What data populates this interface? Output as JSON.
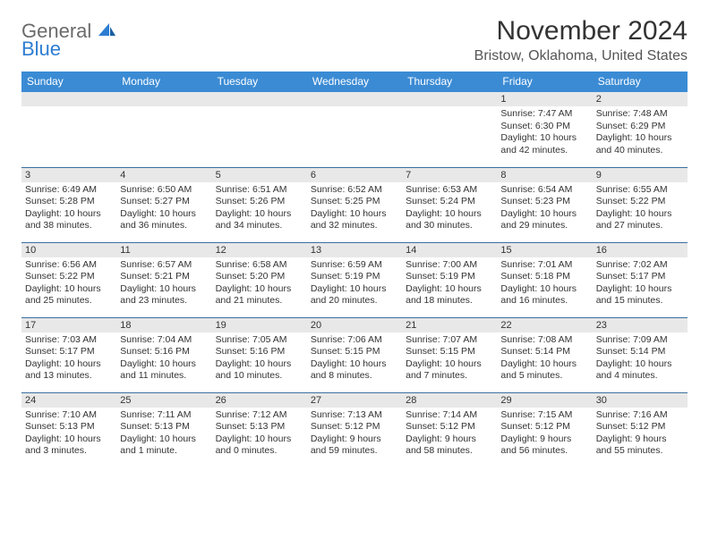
{
  "logo": {
    "line1": "General",
    "line2": "Blue",
    "color_gray": "#6b6b6b",
    "color_blue": "#2d7dd2"
  },
  "title": "November 2024",
  "location": "Bristow, Oklahoma, United States",
  "colors": {
    "header_bg": "#3b8bd4",
    "header_text": "#ffffff",
    "row_divider": "#3b6fa0",
    "daynum_bg": "#e8e8e8",
    "spacer_bg": "#f0f0f0",
    "body_text": "#333333",
    "page_bg": "#ffffff"
  },
  "day_headers": [
    "Sunday",
    "Monday",
    "Tuesday",
    "Wednesday",
    "Thursday",
    "Friday",
    "Saturday"
  ],
  "weeks": [
    [
      null,
      null,
      null,
      null,
      null,
      {
        "n": "1",
        "sr": "Sunrise: 7:47 AM",
        "ss": "Sunset: 6:30 PM",
        "dl": "Daylight: 10 hours and 42 minutes."
      },
      {
        "n": "2",
        "sr": "Sunrise: 7:48 AM",
        "ss": "Sunset: 6:29 PM",
        "dl": "Daylight: 10 hours and 40 minutes."
      }
    ],
    [
      {
        "n": "3",
        "sr": "Sunrise: 6:49 AM",
        "ss": "Sunset: 5:28 PM",
        "dl": "Daylight: 10 hours and 38 minutes."
      },
      {
        "n": "4",
        "sr": "Sunrise: 6:50 AM",
        "ss": "Sunset: 5:27 PM",
        "dl": "Daylight: 10 hours and 36 minutes."
      },
      {
        "n": "5",
        "sr": "Sunrise: 6:51 AM",
        "ss": "Sunset: 5:26 PM",
        "dl": "Daylight: 10 hours and 34 minutes."
      },
      {
        "n": "6",
        "sr": "Sunrise: 6:52 AM",
        "ss": "Sunset: 5:25 PM",
        "dl": "Daylight: 10 hours and 32 minutes."
      },
      {
        "n": "7",
        "sr": "Sunrise: 6:53 AM",
        "ss": "Sunset: 5:24 PM",
        "dl": "Daylight: 10 hours and 30 minutes."
      },
      {
        "n": "8",
        "sr": "Sunrise: 6:54 AM",
        "ss": "Sunset: 5:23 PM",
        "dl": "Daylight: 10 hours and 29 minutes."
      },
      {
        "n": "9",
        "sr": "Sunrise: 6:55 AM",
        "ss": "Sunset: 5:22 PM",
        "dl": "Daylight: 10 hours and 27 minutes."
      }
    ],
    [
      {
        "n": "10",
        "sr": "Sunrise: 6:56 AM",
        "ss": "Sunset: 5:22 PM",
        "dl": "Daylight: 10 hours and 25 minutes."
      },
      {
        "n": "11",
        "sr": "Sunrise: 6:57 AM",
        "ss": "Sunset: 5:21 PM",
        "dl": "Daylight: 10 hours and 23 minutes."
      },
      {
        "n": "12",
        "sr": "Sunrise: 6:58 AM",
        "ss": "Sunset: 5:20 PM",
        "dl": "Daylight: 10 hours and 21 minutes."
      },
      {
        "n": "13",
        "sr": "Sunrise: 6:59 AM",
        "ss": "Sunset: 5:19 PM",
        "dl": "Daylight: 10 hours and 20 minutes."
      },
      {
        "n": "14",
        "sr": "Sunrise: 7:00 AM",
        "ss": "Sunset: 5:19 PM",
        "dl": "Daylight: 10 hours and 18 minutes."
      },
      {
        "n": "15",
        "sr": "Sunrise: 7:01 AM",
        "ss": "Sunset: 5:18 PM",
        "dl": "Daylight: 10 hours and 16 minutes."
      },
      {
        "n": "16",
        "sr": "Sunrise: 7:02 AM",
        "ss": "Sunset: 5:17 PM",
        "dl": "Daylight: 10 hours and 15 minutes."
      }
    ],
    [
      {
        "n": "17",
        "sr": "Sunrise: 7:03 AM",
        "ss": "Sunset: 5:17 PM",
        "dl": "Daylight: 10 hours and 13 minutes."
      },
      {
        "n": "18",
        "sr": "Sunrise: 7:04 AM",
        "ss": "Sunset: 5:16 PM",
        "dl": "Daylight: 10 hours and 11 minutes."
      },
      {
        "n": "19",
        "sr": "Sunrise: 7:05 AM",
        "ss": "Sunset: 5:16 PM",
        "dl": "Daylight: 10 hours and 10 minutes."
      },
      {
        "n": "20",
        "sr": "Sunrise: 7:06 AM",
        "ss": "Sunset: 5:15 PM",
        "dl": "Daylight: 10 hours and 8 minutes."
      },
      {
        "n": "21",
        "sr": "Sunrise: 7:07 AM",
        "ss": "Sunset: 5:15 PM",
        "dl": "Daylight: 10 hours and 7 minutes."
      },
      {
        "n": "22",
        "sr": "Sunrise: 7:08 AM",
        "ss": "Sunset: 5:14 PM",
        "dl": "Daylight: 10 hours and 5 minutes."
      },
      {
        "n": "23",
        "sr": "Sunrise: 7:09 AM",
        "ss": "Sunset: 5:14 PM",
        "dl": "Daylight: 10 hours and 4 minutes."
      }
    ],
    [
      {
        "n": "24",
        "sr": "Sunrise: 7:10 AM",
        "ss": "Sunset: 5:13 PM",
        "dl": "Daylight: 10 hours and 3 minutes."
      },
      {
        "n": "25",
        "sr": "Sunrise: 7:11 AM",
        "ss": "Sunset: 5:13 PM",
        "dl": "Daylight: 10 hours and 1 minute."
      },
      {
        "n": "26",
        "sr": "Sunrise: 7:12 AM",
        "ss": "Sunset: 5:13 PM",
        "dl": "Daylight: 10 hours and 0 minutes."
      },
      {
        "n": "27",
        "sr": "Sunrise: 7:13 AM",
        "ss": "Sunset: 5:12 PM",
        "dl": "Daylight: 9 hours and 59 minutes."
      },
      {
        "n": "28",
        "sr": "Sunrise: 7:14 AM",
        "ss": "Sunset: 5:12 PM",
        "dl": "Daylight: 9 hours and 58 minutes."
      },
      {
        "n": "29",
        "sr": "Sunrise: 7:15 AM",
        "ss": "Sunset: 5:12 PM",
        "dl": "Daylight: 9 hours and 56 minutes."
      },
      {
        "n": "30",
        "sr": "Sunrise: 7:16 AM",
        "ss": "Sunset: 5:12 PM",
        "dl": "Daylight: 9 hours and 55 minutes."
      }
    ]
  ]
}
